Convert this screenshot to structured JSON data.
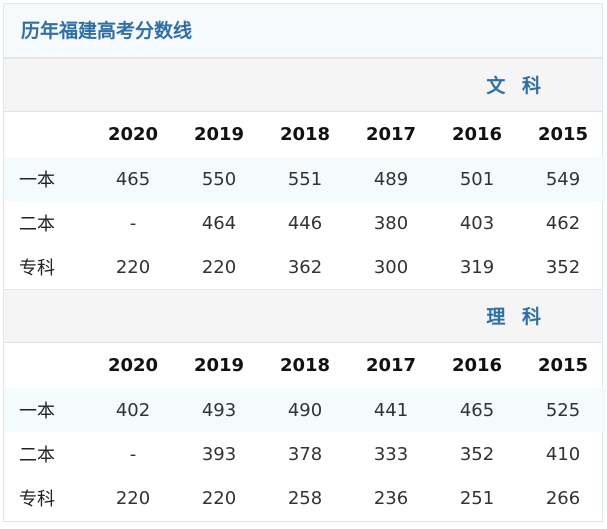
{
  "title": "历年福建高考分数线",
  "sections": [
    {
      "label": "文 科",
      "years": [
        "2020",
        "2019",
        "2018",
        "2017",
        "2016",
        "2015"
      ],
      "rows": [
        {
          "name": "一本",
          "values": [
            "465",
            "550",
            "551",
            "489",
            "501",
            "549"
          ]
        },
        {
          "name": "二本",
          "values": [
            "-",
            "464",
            "446",
            "380",
            "403",
            "462"
          ]
        },
        {
          "name": "专科",
          "values": [
            "220",
            "220",
            "362",
            "300",
            "319",
            "352"
          ]
        }
      ]
    },
    {
      "label": "理 科",
      "years": [
        "2020",
        "2019",
        "2018",
        "2017",
        "2016",
        "2015"
      ],
      "rows": [
        {
          "name": "一本",
          "values": [
            "402",
            "493",
            "490",
            "441",
            "465",
            "525"
          ]
        },
        {
          "name": "二本",
          "values": [
            "-",
            "393",
            "378",
            "333",
            "352",
            "410"
          ]
        },
        {
          "name": "专科",
          "values": [
            "220",
            "220",
            "258",
            "236",
            "251",
            "266"
          ]
        }
      ]
    }
  ]
}
